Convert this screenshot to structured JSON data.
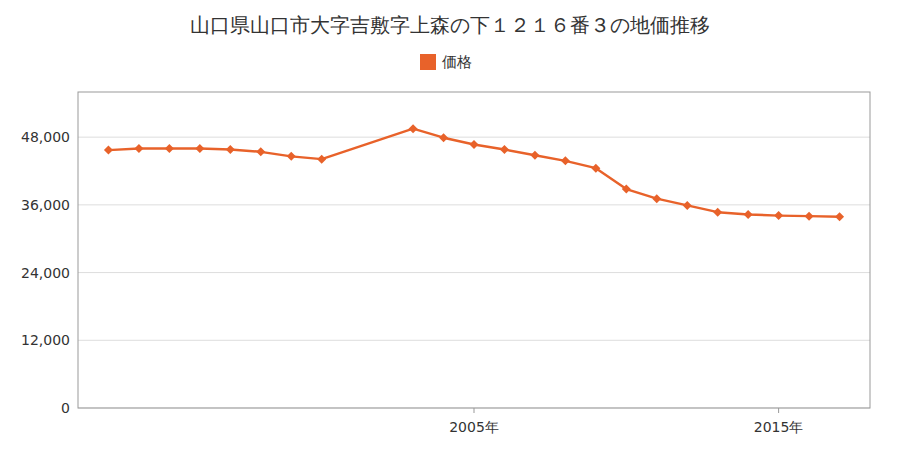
{
  "chart_data": {
    "type": "line",
    "title": "山口県山口市大字吉敷字上森の下１２１６番３の地価推移",
    "x": [
      1993,
      1994,
      1995,
      1996,
      1997,
      1998,
      1999,
      2000,
      2003,
      2004,
      2005,
      2006,
      2007,
      2008,
      2009,
      2010,
      2011,
      2012,
      2013,
      2014,
      2015,
      2016,
      2017
    ],
    "series": [
      {
        "name": "価格",
        "color": "#e8622a",
        "marker": "diamond",
        "values": [
          45700,
          46000,
          46000,
          46000,
          45800,
          45400,
          44600,
          44100,
          49500,
          47900,
          46700,
          45800,
          44800,
          43800,
          42500,
          38800,
          37100,
          35900,
          34700,
          34300,
          34100,
          34000,
          33900
        ]
      }
    ],
    "xlim": [
      1992,
      2018
    ],
    "xticks": [
      {
        "value": 2005,
        "label": "2005年"
      },
      {
        "value": 2015,
        "label": "2015年"
      }
    ],
    "ylim": [
      0,
      56000
    ],
    "yticks": [
      0,
      {
        "value": 12000,
        "label": "12,000"
      },
      {
        "value": 24000,
        "label": "24,000"
      },
      {
        "value": 36000,
        "label": "36,000"
      },
      {
        "value": 48000,
        "label": "48,000"
      }
    ],
    "grid": true,
    "legend": "top"
  }
}
